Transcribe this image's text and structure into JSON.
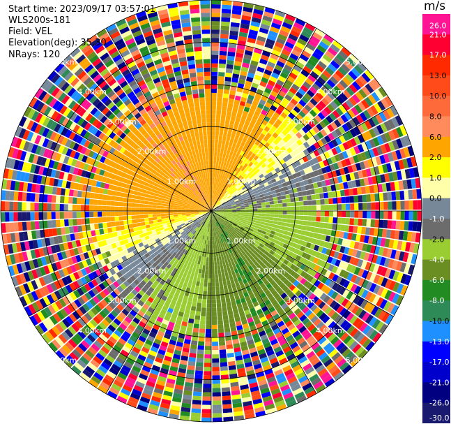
{
  "header": {
    "start_time_label": "Start time:",
    "start_time_value": "2023/09/17 03:57:01",
    "instrument": "WLS200s-181",
    "field_label": "Field:",
    "field_value": "VEL",
    "elevation_label": "Elevation(deg):",
    "elevation_value": "35.30",
    "nrays_label": "NRays:",
    "nrays_value": "120"
  },
  "chart_data": {
    "type": "heatmap",
    "projection": "polar-ppi",
    "nrays": 120,
    "range_rings_km": [
      1.0,
      2.0,
      3.0,
      4.0,
      5.0
    ],
    "range_labels": [
      "1.00km",
      "2.00km",
      "3.00km",
      "4.00km",
      "5.00km"
    ],
    "max_range_km": 5.0,
    "valid_data_range_km": 3.0,
    "azimuth_lines_deg": [
      0,
      30,
      60,
      90,
      120,
      150,
      180,
      210,
      240,
      270,
      300,
      330
    ],
    "colorbar": {
      "unit": "m/s",
      "ticks": [
        "26.0",
        "21.0",
        "17.0",
        "13.0",
        "10.0",
        "8.0",
        "6.0",
        "2.0",
        "1.0",
        "0.0",
        "-1.0",
        "-2.0",
        "-4.0",
        "-6.0",
        "-8.0",
        "-10.0",
        "-13.0",
        "-17.0",
        "-21.0",
        "-26.0",
        "-30.0"
      ],
      "colors": [
        "#ff1493",
        "#ff0033",
        "#ff2a00",
        "#ff4a1a",
        "#ff6a3a",
        "#ff8a5c",
        "#ffa500",
        "#ffff00",
        "#ffffaa",
        "#778899",
        "#6c6c6c",
        "#9acd32",
        "#6b8e23",
        "#228b22",
        "#2e8b57",
        "#1e90ff",
        "#0000ff",
        "#0000cd",
        "#000080",
        "#191970"
      ]
    },
    "velocity_field_by_azimuth": [
      {
        "azimuth_deg": 0,
        "velocity_ms": 4.0
      },
      {
        "azimuth_deg": 30,
        "velocity_ms": 2.5
      },
      {
        "azimuth_deg": 60,
        "velocity_ms": 0.0
      },
      {
        "azimuth_deg": 90,
        "velocity_ms": -2.5
      },
      {
        "azimuth_deg": 120,
        "velocity_ms": -4.0
      },
      {
        "azimuth_deg": 150,
        "velocity_ms": -6.0
      },
      {
        "azimuth_deg": 180,
        "velocity_ms": -4.5
      },
      {
        "azimuth_deg": 210,
        "velocity_ms": -2.5
      },
      {
        "azimuth_deg": 240,
        "velocity_ms": 0.0
      },
      {
        "azimuth_deg": 270,
        "velocity_ms": 3.0
      },
      {
        "azimuth_deg": 300,
        "velocity_ms": 5.0
      },
      {
        "azimuth_deg": 330,
        "velocity_ms": 6.0
      }
    ]
  }
}
